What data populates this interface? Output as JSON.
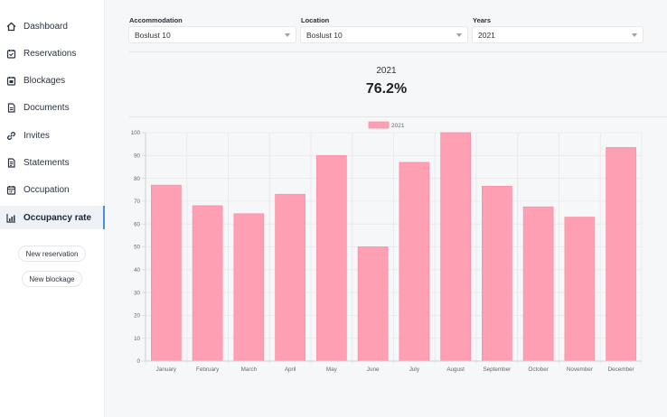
{
  "sidebar": {
    "items": [
      {
        "label": "Dashboard",
        "icon": "home-icon"
      },
      {
        "label": "Reservations",
        "icon": "calendar-check-icon"
      },
      {
        "label": "Blockages",
        "icon": "calendar-block-icon"
      },
      {
        "label": "Documents",
        "icon": "document-icon"
      },
      {
        "label": "Invites",
        "icon": "link-icon"
      },
      {
        "label": "Statements",
        "icon": "statement-icon"
      },
      {
        "label": "Occupation",
        "icon": "calendar-icon"
      },
      {
        "label": "Occupancy rate",
        "icon": "bar-chart-icon",
        "active": true
      }
    ],
    "new_reservation": "New reservation",
    "new_blockage": "New blockage"
  },
  "filters": {
    "accommodation": {
      "label": "Accommodation",
      "value": "Boslust 10"
    },
    "location": {
      "label": "Location",
      "value": "Boslust 10"
    },
    "years": {
      "label": "Years",
      "value": "2021"
    }
  },
  "summary": {
    "year": "2021",
    "occupancy": "76.2%"
  },
  "colors": {
    "bar_fill": "#ff9fb4",
    "bar_stroke": "#ff8fa8",
    "accent": "#4a90d9"
  },
  "chart_data": {
    "type": "bar",
    "categories": [
      "January",
      "February",
      "March",
      "April",
      "May",
      "June",
      "July",
      "August",
      "September",
      "October",
      "November",
      "December"
    ],
    "series": [
      {
        "name": "2021",
        "values": [
          77,
          68,
          64.5,
          73,
          90,
          50,
          87,
          100,
          76.5,
          67.5,
          63,
          93.5
        ]
      }
    ],
    "ylim": [
      0,
      100
    ],
    "yticks": [
      "0",
      "10",
      "20",
      "30",
      "40",
      "50",
      "60",
      "70",
      "80",
      "90",
      "100"
    ],
    "legend": "top-center",
    "grid": true
  }
}
